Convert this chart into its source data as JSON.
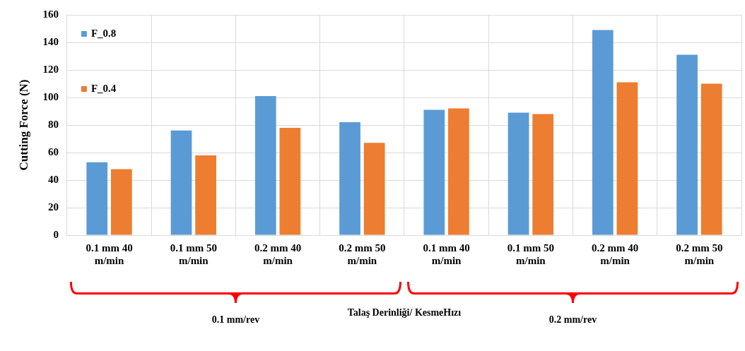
{
  "chart_data": {
    "type": "bar",
    "xlabel": "Talaş Derinliği/ KesmeHızı",
    "ylabel": "Cutting Force (N)",
    "categories": [
      "0.1 mm 40 m/min",
      "0.1 mm 50 m/min",
      "0.2 mm 40 m/min",
      "0.2 mm 50 m/min",
      "0.1 mm 40 m/min",
      "0.1 mm 50 m/min",
      "0.2 mm 40 m/min",
      "0.2 mm 50 m/min"
    ],
    "series": [
      {
        "name": "F_0.8",
        "color": "#5b9bd5",
        "values": [
          53,
          76,
          101,
          82,
          91,
          89,
          149,
          131
        ]
      },
      {
        "name": "F_0.4",
        "color": "#ed7d31",
        "values": [
          48,
          58,
          78,
          67,
          92,
          88,
          111,
          110
        ]
      }
    ],
    "ylim": [
      0,
      160
    ],
    "yticks": [
      0,
      20,
      40,
      60,
      80,
      100,
      120,
      140,
      160
    ],
    "grid": true,
    "legend": "top left",
    "annotations": [
      "0.1 mm/rev",
      "0.2 mm/rev"
    ]
  }
}
